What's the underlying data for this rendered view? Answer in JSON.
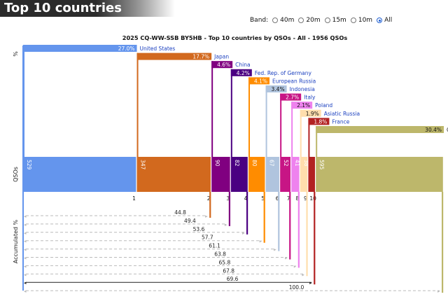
{
  "page_title": "Top 10 countries",
  "band_filter": {
    "label": "Band:",
    "options": [
      {
        "label": "40m",
        "checked": false
      },
      {
        "label": "20m",
        "checked": false
      },
      {
        "label": "15m",
        "checked": false
      },
      {
        "label": "10m",
        "checked": false
      },
      {
        "label": "All",
        "checked": true
      }
    ]
  },
  "chart_data": {
    "type": "bar",
    "title": "2025 CQ-WW-SSB BY5HB - Top 10 countries by QSOs - All - 1956 QSOs",
    "total_qsos": 1956,
    "ylabel_top": "%",
    "ylabel_mid": "QSOs",
    "ylabel_bottom": "Accumulated %",
    "categories": [
      "United States",
      "Japan",
      "China",
      "Fed. Rep. of Germany",
      "European Russia",
      "Indonesia",
      "Italy",
      "Poland",
      "Asiatic Russia",
      "France",
      "Others"
    ],
    "ranks": [
      "1",
      "2",
      "3",
      "4",
      "5",
      "6",
      "7",
      "8",
      "9",
      "10",
      ""
    ],
    "qsos": [
      529,
      347,
      90,
      82,
      80,
      67,
      52,
      41,
      38,
      35,
      595
    ],
    "qso_labels": [
      "529",
      "347",
      "90",
      "82",
      "80",
      "67",
      "52",
      "41",
      "38",
      "",
      "595"
    ],
    "percent": [
      27.0,
      17.7,
      4.6,
      4.2,
      4.1,
      3.4,
      2.7,
      2.1,
      1.9,
      1.8,
      30.4
    ],
    "percent_labels": [
      "27.0%",
      "17.7%",
      "4.6%",
      "4.2%",
      "4.1%",
      "3.4%",
      "2.7%",
      "2.1%",
      "1.9%",
      "1.8%",
      "30.4%"
    ],
    "accumulated": [
      27.0,
      44.8,
      49.4,
      53.6,
      57.7,
      61.1,
      63.8,
      65.8,
      67.8,
      69.6,
      100.0
    ],
    "accumulated_labels": [
      "",
      "44.8",
      "49.4",
      "53.6",
      "57.7",
      "61.1",
      "63.8",
      "65.8",
      "67.8",
      "69.6",
      "100.0"
    ],
    "colors": [
      "#6495ed",
      "#d2691e",
      "#800080",
      "#4b0082",
      "#ff8c00",
      "#b0c4de",
      "#c71585",
      "#ee82ee",
      "#ffdead",
      "#b22222",
      "#bdb76b"
    ],
    "label_colors": [
      "#1a3fbf",
      "#1a3fbf",
      "#1a3fbf",
      "#1a3fbf",
      "#1a3fbf",
      "#1a3fbf",
      "#1a3fbf",
      "#1a3fbf",
      "#1a3fbf",
      "#1a3fbf",
      "#222222"
    ],
    "grid": false,
    "legend": "none"
  }
}
